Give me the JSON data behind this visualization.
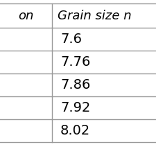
{
  "col1_header": "on",
  "col2_header": "Grain size n",
  "rows": [
    [
      "",
      "7.6"
    ],
    [
      "",
      "7.76"
    ],
    [
      "",
      "7.86"
    ],
    [
      "",
      "7.92"
    ],
    [
      "",
      "8.02"
    ]
  ],
  "background_color": "#ffffff",
  "line_color": "#999999",
  "text_color": "#000000",
  "header_fontsize": 13,
  "cell_fontsize": 14
}
